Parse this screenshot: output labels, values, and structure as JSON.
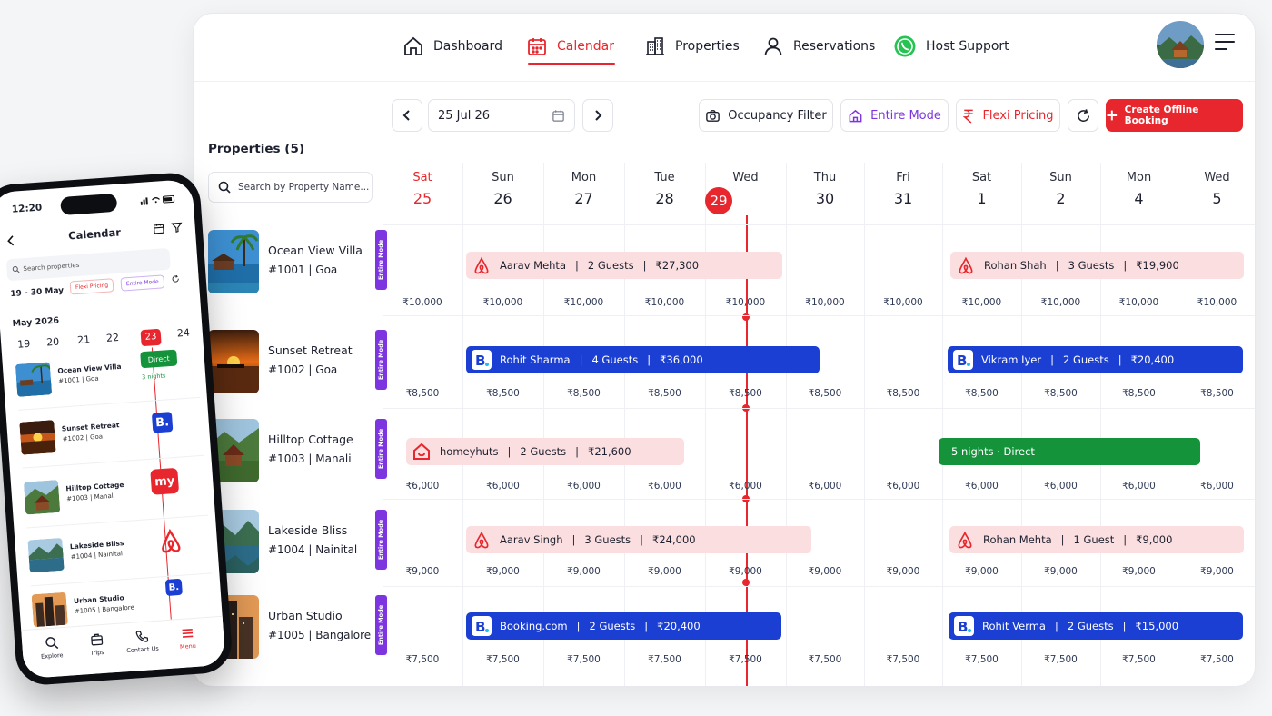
{
  "nav": {
    "dashboard": "Dashboard",
    "calendar": "Calendar",
    "properties": "Properties",
    "reservations": "Reservations",
    "host_support": "Host Support"
  },
  "toolbar": {
    "date": "25 Jul 26",
    "occupancy": "Occupancy Filter",
    "entire_mode": "Entire Mode",
    "flexi": "Flexi Pricing",
    "create": "Create Offline Booking"
  },
  "properties_title": "Properties (5)",
  "search_placeholder": "Search by Property Name...",
  "mode_label": "Entire Mode",
  "days": [
    {
      "name": "Sat",
      "date": "25"
    },
    {
      "name": "Sun",
      "date": "26"
    },
    {
      "name": "Mon",
      "date": "27"
    },
    {
      "name": "Tue",
      "date": "28"
    },
    {
      "name": "Wed",
      "date": "29"
    },
    {
      "name": "Thu",
      "date": "30"
    },
    {
      "name": "Fri",
      "date": "31"
    },
    {
      "name": "Sat",
      "date": "1"
    },
    {
      "name": "Sun",
      "date": "2"
    },
    {
      "name": "Mon",
      "date": "4"
    },
    {
      "name": "Wed",
      "date": "5"
    }
  ],
  "properties": [
    {
      "name": "Ocean View Villa",
      "id": "#1001 | Goa",
      "price": "₹10,000",
      "price_count": 11
    },
    {
      "name": "Sunset Retreat",
      "id": "#1002 | Goa",
      "price": "₹8,500",
      "price_count": 11
    },
    {
      "name": "Hilltop Cottage",
      "id": "#1003 | Manali",
      "price": "₹6,000",
      "price_count": 11
    },
    {
      "name": "Lakeside Bliss",
      "id": "#1004 | Nainital",
      "price": "₹9,000",
      "price_count": 11
    },
    {
      "name": "Urban Studio",
      "id": "#1005 | Bangalore",
      "price": "₹7,500",
      "price_count": 11
    }
  ],
  "bookings": [
    {
      "row": 0,
      "source": "airbnb",
      "color": "pink",
      "guest": "Aarav Mehta",
      "guests": "2 Guests",
      "amount": "₹27,300"
    },
    {
      "row": 0,
      "source": "airbnb",
      "color": "pink",
      "guest": "Rohan Shah",
      "guests": "3 Guests",
      "amount": "₹19,900"
    },
    {
      "row": 1,
      "source": "booking",
      "color": "blue",
      "guest": "Rohit Sharma",
      "guests": "4 Guests",
      "amount": "₹36,000"
    },
    {
      "row": 1,
      "source": "booking",
      "color": "blue",
      "guest": "Vikram Iyer",
      "guests": "2 Guests",
      "amount": "₹20,400"
    },
    {
      "row": 2,
      "source": "homeyhuts",
      "color": "pink",
      "guest": "homeyhuts",
      "guests": "2 Guests",
      "amount": "₹21,600"
    },
    {
      "row": 2,
      "source": "direct",
      "color": "green",
      "label": "5 nights · Direct"
    },
    {
      "row": 3,
      "source": "airbnb",
      "color": "pink",
      "guest": "Aarav Singh",
      "guests": "3 Guests",
      "amount": "₹24,000"
    },
    {
      "row": 3,
      "source": "airbnb",
      "color": "pink",
      "guest": "Rohan Mehta",
      "guests": "1 Guest",
      "amount": "₹9,000"
    },
    {
      "row": 4,
      "source": "booking",
      "color": "blue",
      "guest": "Booking.com",
      "guests": "2 Guests",
      "amount": "₹20,400"
    },
    {
      "row": 4,
      "source": "booking",
      "color": "blue",
      "guest": "Rohit Verma",
      "guests": "2 Guests",
      "amount": "₹15,000"
    }
  ],
  "phone": {
    "time": "12:20",
    "title": "Calendar",
    "search_placeholder": "Search properties",
    "range": "19 - 30 May",
    "flexi": "Flexi Pricing",
    "entire": "Entire Mode",
    "month": "May 2026",
    "days": [
      "19",
      "20",
      "21",
      "22",
      "23",
      "24"
    ],
    "direct_label": "Direct",
    "nights_label": "3 nights",
    "my_label": "my",
    "b_label": "B.",
    "properties": [
      {
        "name": "Ocean View Villa",
        "id": "#1001 | Goa"
      },
      {
        "name": "Sunset Retreat",
        "id": "#1002 | Goa"
      },
      {
        "name": "Hilltop Cottage",
        "id": "#1003 | Manali"
      },
      {
        "name": "Lakeside Bliss",
        "id": "#1004 | Nainital"
      },
      {
        "name": "Urban Studio",
        "id": "#1005 | Bangalore"
      }
    ],
    "tabs": [
      "Explore",
      "Trips",
      "Contact Us",
      "Menu"
    ]
  },
  "colors": {
    "accent_red": "#e7272d",
    "purple": "#7d35e0",
    "booking_blue": "#1a3fd2",
    "direct_green": "#14933a",
    "airbnb_pink": "#fbdfe0"
  }
}
